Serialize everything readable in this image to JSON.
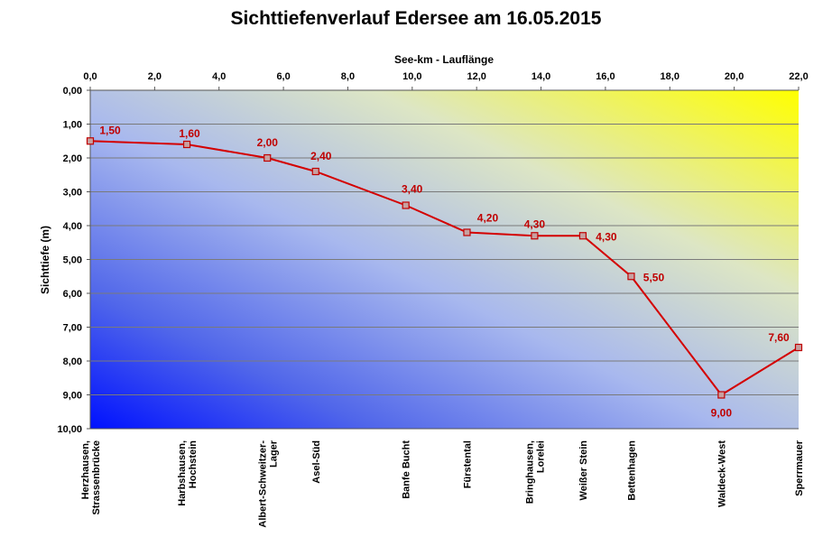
{
  "chart_data": {
    "type": "line",
    "title": "Sichttiefenverlauf Edersee am 16.05.2015",
    "xlabel": "See-km - Lauflänge",
    "ylabel": "Sichttiefe (m)",
    "xlim": [
      0,
      22
    ],
    "ylim": [
      0,
      10
    ],
    "y_inverted": true,
    "x_axis_position": "top",
    "x_ticks": [
      "0,0",
      "2,0",
      "4,0",
      "6,0",
      "8,0",
      "10,0",
      "12,0",
      "14,0",
      "16,0",
      "18,0",
      "20,0",
      "22,0"
    ],
    "y_ticks": [
      "0,00",
      "1,00",
      "2,00",
      "3,00",
      "4,00",
      "5,00",
      "6,00",
      "7,00",
      "8,00",
      "9,00",
      "10,00"
    ],
    "grid": "horizontal",
    "background": "gradient yellow (top-right) to blue (bottom-left)",
    "series": [
      {
        "color": "#d40000",
        "points": [
          {
            "station": "Herzhausen, Strassenbrücke",
            "x": 0.0,
            "y": 1.5,
            "label": "1,50"
          },
          {
            "station": "Harbshausen, Hochstein",
            "x": 3.0,
            "y": 1.6,
            "label": "1,60"
          },
          {
            "station": "Albert-Schweitzer-Lager",
            "x": 5.5,
            "y": 2.0,
            "label": "2,00"
          },
          {
            "station": "Asel-Süd",
            "x": 7.0,
            "y": 2.4,
            "label": "2,40"
          },
          {
            "station": "Banfe Bucht",
            "x": 9.8,
            "y": 3.4,
            "label": "3,40"
          },
          {
            "station": "Fürstental",
            "x": 11.7,
            "y": 4.2,
            "label": "4,20"
          },
          {
            "station": "Bringhausen, Lorelei",
            "x": 13.8,
            "y": 4.3,
            "label": "4,30"
          },
          {
            "station": "Weißer Stein",
            "x": 15.3,
            "y": 4.3,
            "label": "4,30"
          },
          {
            "station": "Bettenhagen",
            "x": 16.8,
            "y": 5.5,
            "label": "5,50"
          },
          {
            "station": "Waldeck-West",
            "x": 19.6,
            "y": 9.0,
            "label": "9,00"
          },
          {
            "station": "Sperrmauer",
            "x": 22.2,
            "y": 7.6,
            "label": "7,60"
          }
        ]
      }
    ],
    "station_labels": [
      {
        "text": "Herzhausen,\nStrassenbrücke",
        "x": 0.0
      },
      {
        "text": "Harbshausen,\nHochstein",
        "x": 3.0
      },
      {
        "text": "Albert-Schweitzer-\nLager",
        "x": 5.5
      },
      {
        "text": "Asel-Süd",
        "x": 7.0
      },
      {
        "text": "Banfe Bucht",
        "x": 9.8
      },
      {
        "text": "Fürstental",
        "x": 11.7
      },
      {
        "text": "Bringhausen,\nLorelei",
        "x": 13.8
      },
      {
        "text": "Weißer Stein",
        "x": 15.3
      },
      {
        "text": "Bettenhagen",
        "x": 16.8
      },
      {
        "text": "Waldeck-West",
        "x": 19.6
      },
      {
        "text": "Sperrmauer",
        "x": 22.2
      }
    ]
  }
}
